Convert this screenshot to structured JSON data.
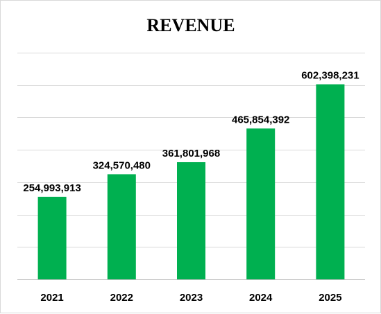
{
  "chart_data": {
    "type": "bar",
    "title": "REVENUE",
    "xlabel": "",
    "ylabel": "",
    "categories": [
      "2021",
      "2022",
      "2023",
      "2024",
      "2025"
    ],
    "values": [
      254993913,
      324570480,
      361801968,
      465854392,
      602398231
    ],
    "data_labels": [
      "254,993,913",
      "324,570,480",
      "361,801,968",
      "465,854,392",
      "602,398,231"
    ],
    "ylim": [
      0,
      700000000
    ],
    "grid": true,
    "legend": "none",
    "colors": {
      "bar": "#00b050",
      "grid": "#d9d9d9",
      "axis": "#bfbfbf",
      "text": "#000000"
    }
  }
}
